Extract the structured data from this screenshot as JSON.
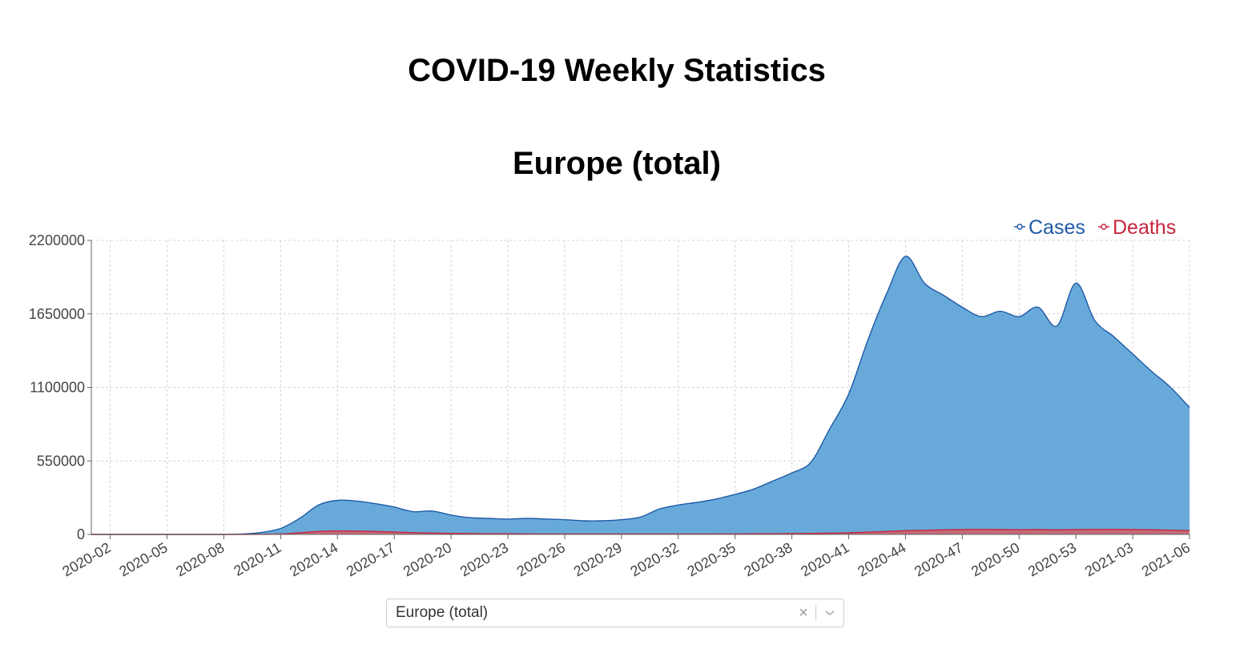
{
  "page": {
    "title": "COVID-19 Weekly Statistics"
  },
  "chart_data": {
    "type": "area",
    "title": "Europe (total)",
    "xlabel": "",
    "ylabel": "",
    "ylim": [
      0,
      2200000
    ],
    "yticks": [
      0,
      550000,
      1100000,
      1650000,
      2200000
    ],
    "grid": true,
    "legend_position": "top-right",
    "x": [
      "2020-01",
      "2020-02",
      "2020-03",
      "2020-04",
      "2020-05",
      "2020-06",
      "2020-07",
      "2020-08",
      "2020-09",
      "2020-10",
      "2020-11",
      "2020-12",
      "2020-13",
      "2020-14",
      "2020-15",
      "2020-16",
      "2020-17",
      "2020-18",
      "2020-19",
      "2020-20",
      "2020-21",
      "2020-22",
      "2020-23",
      "2020-24",
      "2020-25",
      "2020-26",
      "2020-27",
      "2020-28",
      "2020-29",
      "2020-30",
      "2020-31",
      "2020-32",
      "2020-33",
      "2020-34",
      "2020-35",
      "2020-36",
      "2020-37",
      "2020-38",
      "2020-39",
      "2020-40",
      "2020-41",
      "2020-42",
      "2020-43",
      "2020-44",
      "2020-45",
      "2020-46",
      "2020-47",
      "2020-48",
      "2020-49",
      "2020-50",
      "2020-51",
      "2020-52",
      "2020-53",
      "2021-01",
      "2021-02",
      "2021-03",
      "2021-04",
      "2021-05",
      "2021-06"
    ],
    "xticks": [
      "2020-02",
      "2020-05",
      "2020-08",
      "2020-11",
      "2020-14",
      "2020-17",
      "2020-20",
      "2020-23",
      "2020-26",
      "2020-29",
      "2020-32",
      "2020-35",
      "2020-38",
      "2020-41",
      "2020-44",
      "2020-47",
      "2020-50",
      "2020-53",
      "2021-03",
      "2021-06"
    ],
    "series": [
      {
        "name": "Cases",
        "color": "#1f5aa6",
        "fill": "#67aad9",
        "values": [
          0,
          0,
          0,
          0,
          0,
          0,
          0,
          0,
          3000,
          15000,
          45000,
          120000,
          220000,
          255000,
          250000,
          230000,
          205000,
          170000,
          175000,
          145000,
          125000,
          120000,
          115000,
          120000,
          115000,
          110000,
          102000,
          102000,
          110000,
          130000,
          190000,
          220000,
          240000,
          265000,
          300000,
          340000,
          400000,
          460000,
          540000,
          790000,
          1050000,
          1450000,
          1800000,
          2080000,
          1880000,
          1790000,
          1700000,
          1630000,
          1670000,
          1630000,
          1700000,
          1560000,
          1880000,
          1600000,
          1480000,
          1350000,
          1220000,
          1100000,
          950000
        ]
      },
      {
        "name": "Deaths",
        "color": "#c8263c",
        "fill": "#c46a7a",
        "values": [
          0,
          0,
          0,
          0,
          0,
          0,
          0,
          0,
          0,
          300,
          3000,
          12000,
          22000,
          26000,
          25000,
          22000,
          18000,
          13000,
          10000,
          8000,
          6000,
          5000,
          4500,
          4000,
          3500,
          3000,
          3000,
          3000,
          3000,
          3000,
          3000,
          3000,
          3200,
          3500,
          4000,
          4500,
          5000,
          6000,
          7000,
          9000,
          12000,
          17000,
          22000,
          28000,
          31000,
          34000,
          36000,
          37000,
          36000,
          35000,
          36000,
          34000,
          36000,
          37000,
          38000,
          36000,
          35000,
          32000,
          28000
        ]
      }
    ]
  },
  "selector": {
    "value": "Europe (total)",
    "clear_glyph": "×"
  }
}
